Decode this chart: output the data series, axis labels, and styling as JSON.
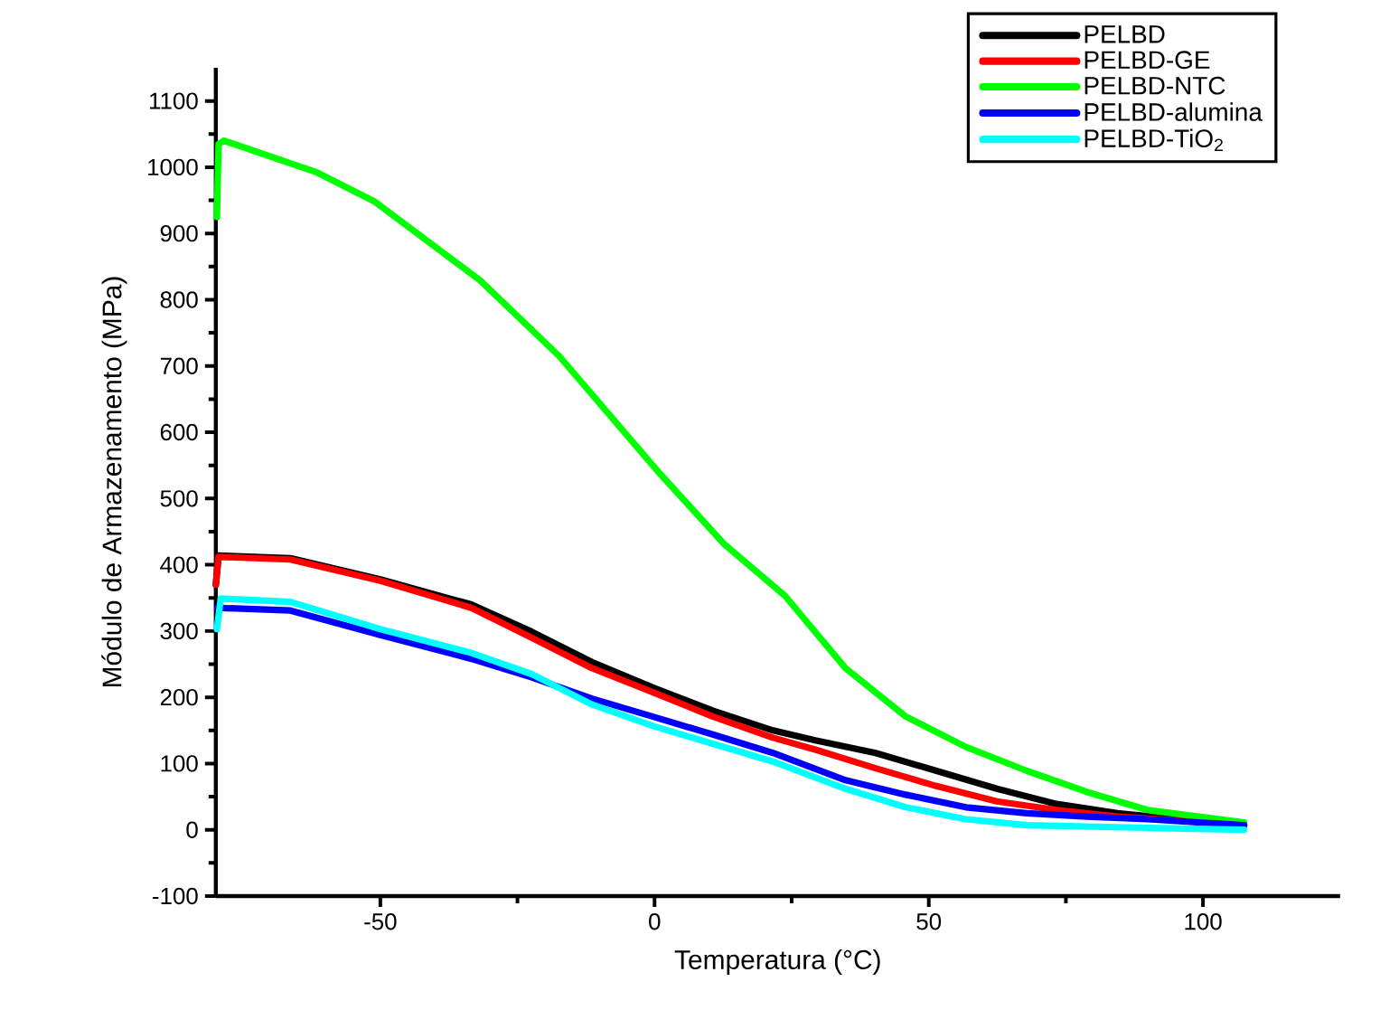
{
  "chart_data": {
    "type": "line",
    "xlabel": "Temperatura (°C)",
    "ylabel": "Módulo de Armazenamento (MPa)",
    "xlim": [
      -80,
      125
    ],
    "ylim": [
      -100,
      1150
    ],
    "xticks": [
      -50,
      0,
      50,
      100
    ],
    "yticks": [
      -100,
      0,
      100,
      200,
      300,
      400,
      500,
      600,
      700,
      800,
      900,
      1000,
      1100
    ],
    "legend": "top right",
    "line_style": "solid",
    "series": [
      {
        "name": "PELBD",
        "color": "#000000",
        "x": [
          -80,
          -79.5,
          -66.4,
          -50,
          -33.4,
          -22.4,
          -11.4,
          -0.4,
          10.6,
          21.6,
          29.3,
          40.3,
          51.4,
          62.4,
          73.3,
          84.4,
          95.4,
          107.5
        ],
        "values": [
          370,
          414,
          410,
          378,
          340,
          299,
          253,
          215,
          180,
          150,
          135,
          116,
          89,
          62,
          39,
          25,
          16,
          7
        ]
      },
      {
        "name": "PELBD-GE",
        "color": "#ff0000",
        "x": [
          -80,
          -79.5,
          -66.4,
          -50,
          -33.4,
          -22.4,
          -11.4,
          -0.4,
          10.6,
          21.6,
          29.3,
          40.3,
          51.4,
          62.4,
          73.3,
          84.4,
          95.4,
          107.5
        ],
        "values": [
          370,
          412,
          408,
          376,
          335,
          290,
          244,
          208,
          171,
          139,
          121,
          93,
          66,
          43,
          30,
          20,
          14,
          7
        ]
      },
      {
        "name": "PELBD-NTC",
        "color": "#00ff00",
        "x": [
          -79.8,
          -79.5,
          -78.5,
          -61.8,
          -51,
          -31.8,
          -17.4,
          0.6,
          12.6,
          23.8,
          34.8,
          45.8,
          56.8,
          67.9,
          78.9,
          89.9,
          107.5
        ],
        "values": [
          925,
          1035,
          1040,
          993,
          948,
          829,
          715,
          541,
          432,
          353,
          244,
          171,
          125,
          89,
          57,
          30,
          11
        ]
      },
      {
        "name": "PELBD-alumina",
        "color": "#0000ff",
        "x": [
          -79.7,
          -66.4,
          -50,
          -33.4,
          -22.4,
          -11.4,
          -0.4,
          10.6,
          21.6,
          34.8,
          45.8,
          56.8,
          67.9,
          78.9,
          89.9,
          107.5
        ],
        "values": [
          335,
          331,
          294,
          258,
          230,
          198,
          171,
          144,
          116,
          75,
          53,
          34,
          25,
          20,
          16,
          7
        ]
      },
      {
        "name": "PELBD-TiO$_{2}$",
        "color": "#00ffff",
        "x": [
          -79.8,
          -79.1,
          -66.4,
          -50,
          -33.4,
          -22.4,
          -11.4,
          -0.4,
          10.6,
          21.6,
          34.8,
          45.8,
          56.8,
          67.9,
          78.9,
          89.9,
          107.5
        ],
        "values": [
          303,
          349,
          344,
          303,
          267,
          235,
          189,
          157,
          130,
          103,
          62,
          34,
          16,
          7,
          5,
          3,
          0
        ]
      }
    ]
  }
}
